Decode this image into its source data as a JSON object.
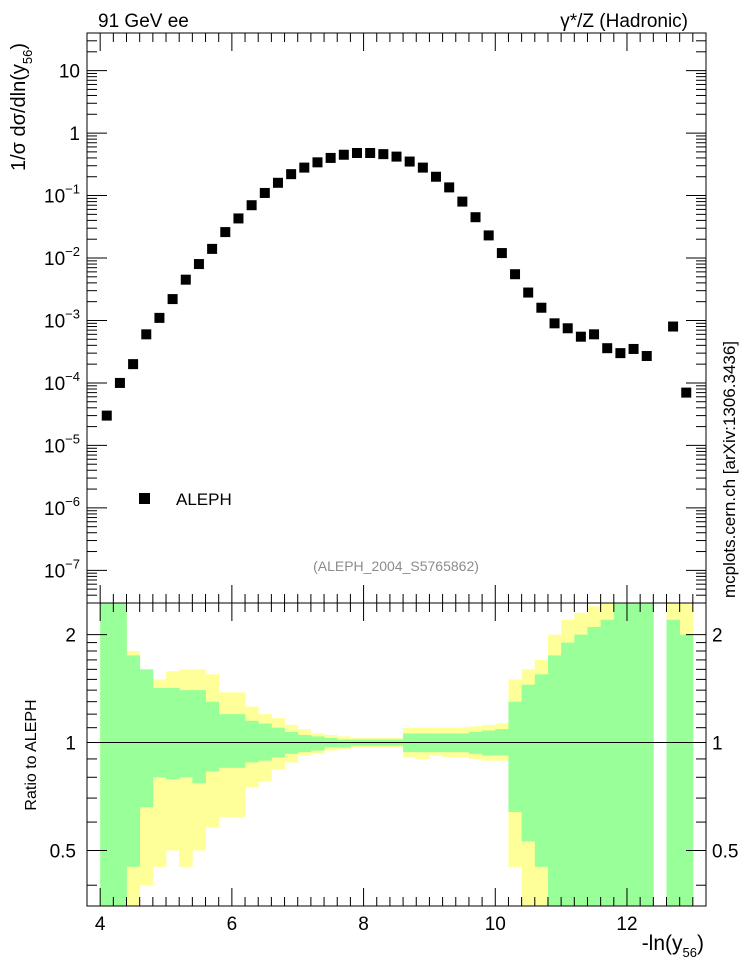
{
  "header": {
    "left_label": "91 GeV ee",
    "right_label": "γ*/Z (Hadronic)",
    "side_label": "mcplots.cern.ch [arXiv:1306.3436]",
    "analysis_label": "(ALEPH_2004_S5765862)"
  },
  "chart_data": [
    {
      "type": "scatter",
      "panel": "main",
      "ylabel": "1/σ dσ/dln(y56)",
      "xlabel": "",
      "log_y": true,
      "xlim": [
        3.8,
        13.2
      ],
      "ylim": [
        3e-08,
        40
      ],
      "y_tick_labels": [
        "10^-7",
        "10^-6",
        "10^-5",
        "10^-4",
        "10^-3",
        "10^-2",
        "10^-1",
        "1",
        "10"
      ],
      "legend_placement": "lower-left",
      "series": [
        {
          "name": "ALEPH",
          "marker": "square",
          "color": "#000000",
          "x": [
            4.1,
            4.3,
            4.5,
            4.7,
            4.9,
            5.1,
            5.3,
            5.5,
            5.7,
            5.9,
            6.1,
            6.3,
            6.5,
            6.7,
            6.9,
            7.1,
            7.3,
            7.5,
            7.7,
            7.9,
            8.1,
            8.3,
            8.5,
            8.7,
            8.9,
            9.1,
            9.3,
            9.5,
            9.7,
            9.9,
            10.1,
            10.3,
            10.5,
            10.7,
            10.9,
            11.1,
            11.3,
            11.5,
            11.7,
            11.9,
            12.1,
            12.3,
            12.7,
            12.9
          ],
          "y": [
            3e-05,
            0.0001,
            0.0002,
            0.0006,
            0.0011,
            0.0022,
            0.0045,
            0.008,
            0.014,
            0.026,
            0.043,
            0.07,
            0.11,
            0.16,
            0.22,
            0.28,
            0.34,
            0.4,
            0.45,
            0.48,
            0.48,
            0.46,
            0.42,
            0.35,
            0.28,
            0.2,
            0.135,
            0.08,
            0.045,
            0.023,
            0.012,
            0.0055,
            0.0028,
            0.0016,
            0.0009,
            0.00075,
            0.00055,
            0.0006,
            0.00036,
            0.0003,
            0.00035,
            0.00027,
            0.0008,
            7e-05
          ]
        }
      ]
    },
    {
      "type": "area",
      "panel": "ratio",
      "ylabel": "Ratio to ALEPH",
      "xlabel": "-ln(y56)",
      "log_y": true,
      "xlim": [
        3.8,
        13.2
      ],
      "ylim": [
        0.35,
        2.45
      ],
      "x_tick_labels": [
        "4",
        "6",
        "8",
        "10",
        "12"
      ],
      "y_tick_labels": [
        "0.5",
        "1",
        "2"
      ],
      "reference_line": 1,
      "bin_edges": [
        4.0,
        4.2,
        4.4,
        4.6,
        4.8,
        5.0,
        5.2,
        5.4,
        5.6,
        5.8,
        6.0,
        6.2,
        6.4,
        6.6,
        6.8,
        7.0,
        7.2,
        7.4,
        7.6,
        7.8,
        8.0,
        8.2,
        8.4,
        8.6,
        8.8,
        9.0,
        9.2,
        9.4,
        9.6,
        9.8,
        10.0,
        10.2,
        10.4,
        10.6,
        10.8,
        11.0,
        11.2,
        11.4,
        11.6,
        11.8,
        12.0,
        12.2,
        12.4,
        12.6,
        12.8,
        13.0
      ],
      "bands": [
        {
          "name": "",
          "color": "#ffff99",
          "lo": [
            0.35,
            0.35,
            0.35,
            0.4,
            0.45,
            0.5,
            0.45,
            0.5,
            0.58,
            0.62,
            0.62,
            0.75,
            0.78,
            0.84,
            0.88,
            0.92,
            0.93,
            0.95,
            0.96,
            0.97,
            0.97,
            0.97,
            0.97,
            0.91,
            0.9,
            0.92,
            0.91,
            0.91,
            0.9,
            0.89,
            0.89,
            0.45,
            0.35,
            0.35,
            0.35,
            0.35,
            0.35,
            0.35,
            0.35,
            0.35,
            0.35,
            0.35,
            null,
            0.35,
            0.35
          ],
          "hi": [
            2.45,
            2.45,
            1.8,
            1.6,
            1.5,
            1.58,
            1.6,
            1.6,
            1.55,
            1.38,
            1.38,
            1.26,
            1.2,
            1.17,
            1.12,
            1.09,
            1.06,
            1.05,
            1.04,
            1.03,
            1.03,
            1.03,
            1.03,
            1.1,
            1.1,
            1.1,
            1.1,
            1.1,
            1.11,
            1.12,
            1.13,
            1.5,
            1.6,
            1.7,
            2.0,
            2.2,
            2.3,
            2.4,
            2.45,
            2.45,
            2.45,
            2.45,
            null,
            2.45,
            2.45
          ]
        },
        {
          "name": "",
          "color": "#99ff99",
          "lo": [
            0.35,
            0.35,
            0.45,
            0.66,
            0.8,
            0.79,
            0.8,
            0.77,
            0.83,
            0.85,
            0.85,
            0.88,
            0.89,
            0.91,
            0.93,
            0.94,
            0.95,
            0.97,
            0.97,
            0.98,
            0.98,
            0.98,
            0.98,
            0.94,
            0.94,
            0.94,
            0.94,
            0.94,
            0.93,
            0.92,
            0.92,
            0.64,
            0.53,
            0.45,
            0.35,
            0.35,
            0.35,
            0.35,
            0.35,
            0.35,
            0.35,
            0.35,
            null,
            0.35,
            0.35
          ],
          "hi": [
            2.45,
            2.45,
            1.75,
            1.6,
            1.42,
            1.42,
            1.4,
            1.4,
            1.3,
            1.2,
            1.2,
            1.15,
            1.13,
            1.1,
            1.07,
            1.05,
            1.04,
            1.03,
            1.02,
            1.02,
            1.02,
            1.02,
            1.02,
            1.06,
            1.06,
            1.06,
            1.06,
            1.06,
            1.07,
            1.08,
            1.09,
            1.3,
            1.45,
            1.55,
            1.75,
            1.9,
            2.0,
            2.1,
            2.2,
            2.45,
            2.45,
            2.45,
            null,
            2.2,
            2.0
          ]
        }
      ]
    }
  ]
}
